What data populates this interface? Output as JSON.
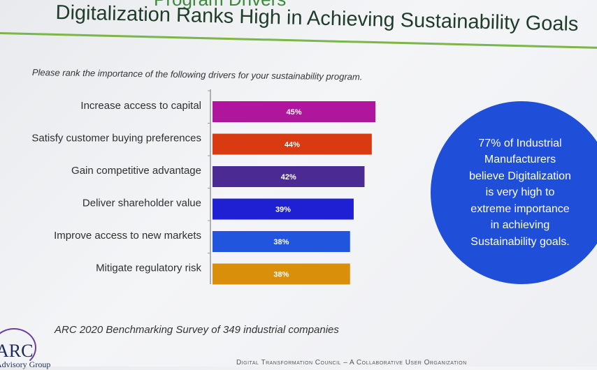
{
  "slide": {
    "top_title": "Program Drivers",
    "title": "Digitalization Ranks High in Achieving Sustainability Goals",
    "question": "Please rank the importance of the following drivers for your sustainability program.",
    "callout": "77% of Industrial\nManufacturers\nbelieve Digitalization\nis  very high to\nextreme importance\nin achieving\nSustainability goals.",
    "source": "ARC 2020 Benchmarking Survey of 349 industrial companies",
    "logo_text": "ARC",
    "logo_sub": "Advisory Group",
    "footer": "Digital Transformation Council – A Collaborative User Organization",
    "colors": {
      "title_rule": "#7ab648",
      "callout_bg": "#1f4fd8"
    }
  },
  "chart_data": {
    "type": "bar",
    "orientation": "horizontal",
    "categories": [
      "Increase access to capital",
      "Satisfy customer buying preferences",
      "Gain competitive advantage",
      "Deliver shareholder value",
      "Improve access to new markets",
      "Mitigate regulatory risk"
    ],
    "values": [
      45,
      44,
      42,
      39,
      38,
      38
    ],
    "value_labels": [
      "45%",
      "44%",
      "42%",
      "39%",
      "38%",
      "38%"
    ],
    "colors": [
      "#b0159e",
      "#d93a12",
      "#4b2a93",
      "#1f1fd4",
      "#2255dd",
      "#d98f0a"
    ],
    "xlim": [
      0,
      100
    ],
    "grid": false,
    "legend": "none"
  }
}
